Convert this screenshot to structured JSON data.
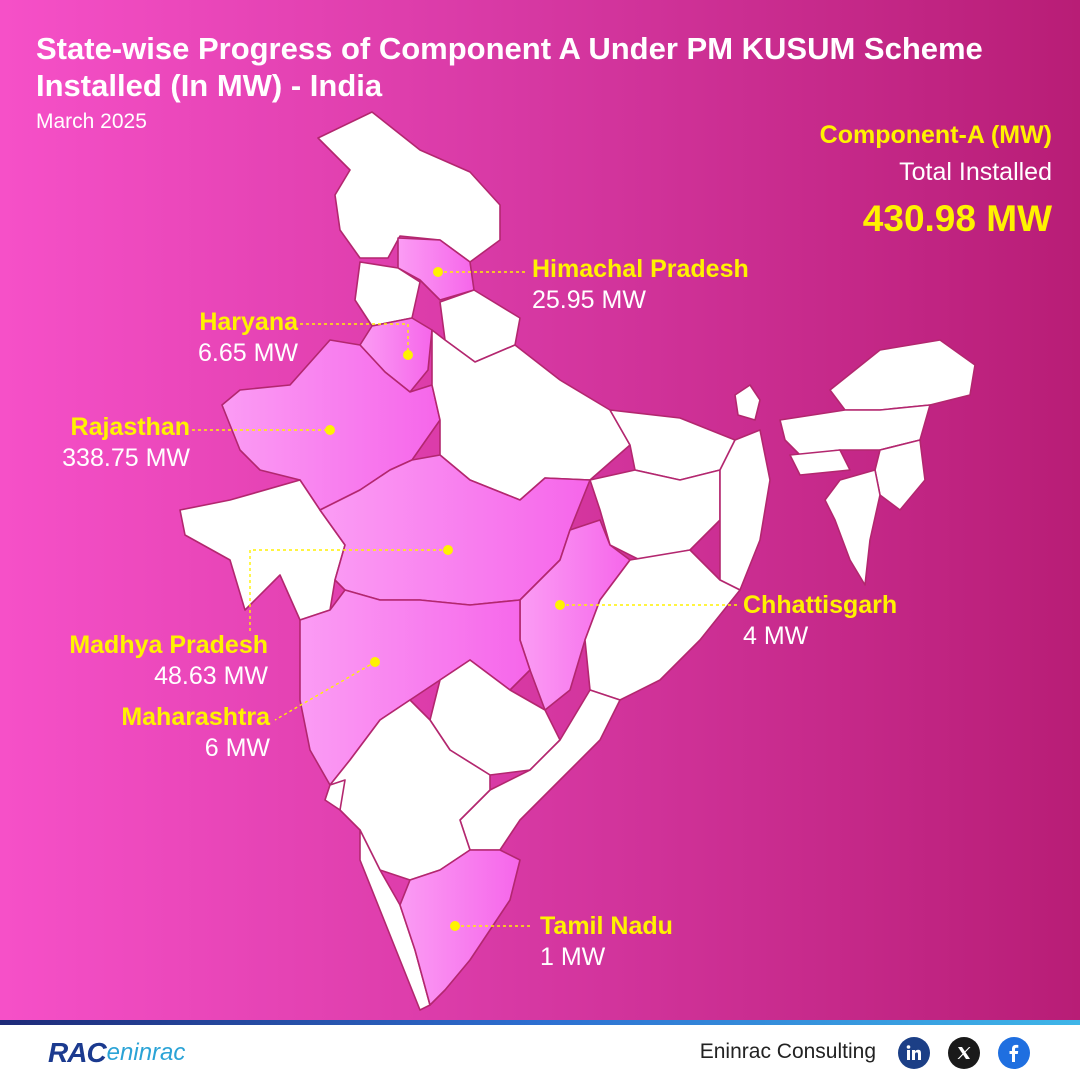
{
  "header": {
    "title": "State-wise Progress of Component A Under PM KUSUM Scheme Installed (In MW) - India",
    "subtitle": "March 2025"
  },
  "summary": {
    "label": "Component-A (MW)",
    "sublabel": "Total Installed",
    "total": "430.98 MW"
  },
  "states": [
    {
      "name": "Himachal Pradesh",
      "value": "25.95 MW",
      "mw": 25.95
    },
    {
      "name": "Haryana",
      "value": "6.65 MW",
      "mw": 6.65
    },
    {
      "name": "Rajasthan",
      "value": "338.75 MW",
      "mw": 338.75
    },
    {
      "name": "Madhya Pradesh",
      "value": "48.63 MW",
      "mw": 48.63
    },
    {
      "name": "Maharashtra",
      "value": "6 MW",
      "mw": 6
    },
    {
      "name": "Chhattisgarh",
      "value": "4 MW",
      "mw": 4
    },
    {
      "name": "Tamil Nadu",
      "value": "1 MW",
      "mw": 1
    }
  ],
  "footer": {
    "logo_text": "RAC",
    "logo_text2": "eninrac",
    "brand": "Eninrac Consulting",
    "social": [
      "linkedin-icon",
      "x-icon",
      "facebook-icon"
    ]
  },
  "colors": {
    "background_left": "#f650c8",
    "background_right": "#b81d76",
    "highlight_state": "#f98cf0",
    "highlight_state_dark": "#f060ea",
    "other_state": "#ffffff",
    "border": "#b3276f",
    "label_name": "#fff200",
    "label_value": "#ffffff",
    "footer_bar": "#2d6fd1"
  }
}
